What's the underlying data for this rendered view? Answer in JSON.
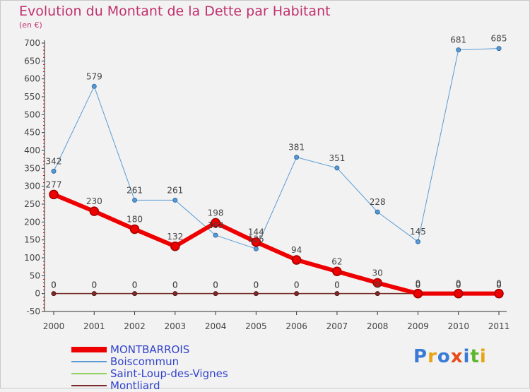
{
  "title": "Evolution du Montant de la Dette par Habitant",
  "unit": "(en €)",
  "logo_text": "Proxiti",
  "chart_data": {
    "type": "line",
    "x": [
      "2000",
      "2001",
      "2002",
      "2003",
      "2004",
      "2005",
      "2006",
      "2007",
      "2008",
      "2009",
      "2010",
      "2011"
    ],
    "ylim": [
      -50,
      700
    ],
    "yticks": [
      -50,
      0,
      50,
      100,
      150,
      200,
      250,
      300,
      350,
      400,
      450,
      500,
      550,
      600,
      650,
      700
    ],
    "grid": false,
    "legend_position": "bottom-left",
    "series": [
      {
        "name": "MONTBARROIS",
        "color": "#ee0000",
        "values": [
          277,
          230,
          180,
          132,
          198,
          144,
          94,
          62,
          30,
          0,
          0,
          0
        ]
      },
      {
        "name": "Boiscommun",
        "color": "#5b9bd5",
        "values": [
          342,
          579,
          261,
          261,
          163,
          125,
          381,
          351,
          228,
          145,
          681,
          685
        ]
      },
      {
        "name": "Saint-Loup-des-Vignes",
        "color": "#90d060",
        "values": [
          0,
          0,
          0,
          0,
          0,
          0,
          0,
          0,
          0,
          0,
          0,
          0
        ]
      },
      {
        "name": "Montliard",
        "color": "#7a2a2a",
        "values": [
          0,
          0,
          0,
          0,
          0,
          0,
          0,
          0,
          0,
          0,
          0,
          0
        ]
      }
    ]
  }
}
